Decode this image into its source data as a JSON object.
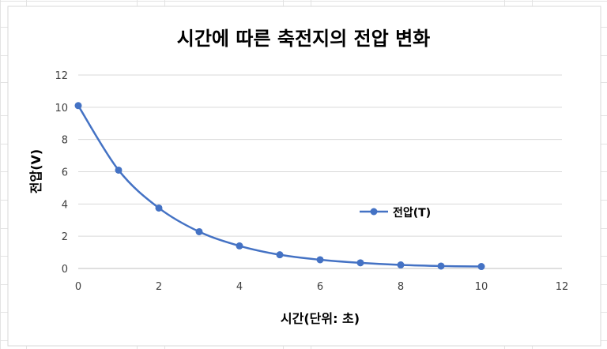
{
  "chart_data": {
    "type": "scatter",
    "title": "시간에 따른 축전지의 전압 변화",
    "xlabel": "시간(단위: 초)",
    "ylabel": "전압(V)",
    "xlim": [
      0,
      12
    ],
    "ylim": [
      0,
      12
    ],
    "xticks": [
      0,
      2,
      4,
      6,
      8,
      10,
      12
    ],
    "yticks": [
      0,
      2,
      4,
      6,
      8,
      10,
      12
    ],
    "grid": "horizontal",
    "legend_position": "right",
    "series": [
      {
        "name": "전압(T)",
        "color": "#4472C4",
        "marker": "circle",
        "line": "smooth",
        "x": [
          0,
          1,
          2,
          3,
          4,
          5,
          6,
          7,
          8,
          9,
          10
        ],
        "y": [
          10.1,
          6.1,
          3.75,
          2.28,
          1.4,
          0.85,
          0.54,
          0.35,
          0.22,
          0.15,
          0.12
        ]
      }
    ]
  }
}
